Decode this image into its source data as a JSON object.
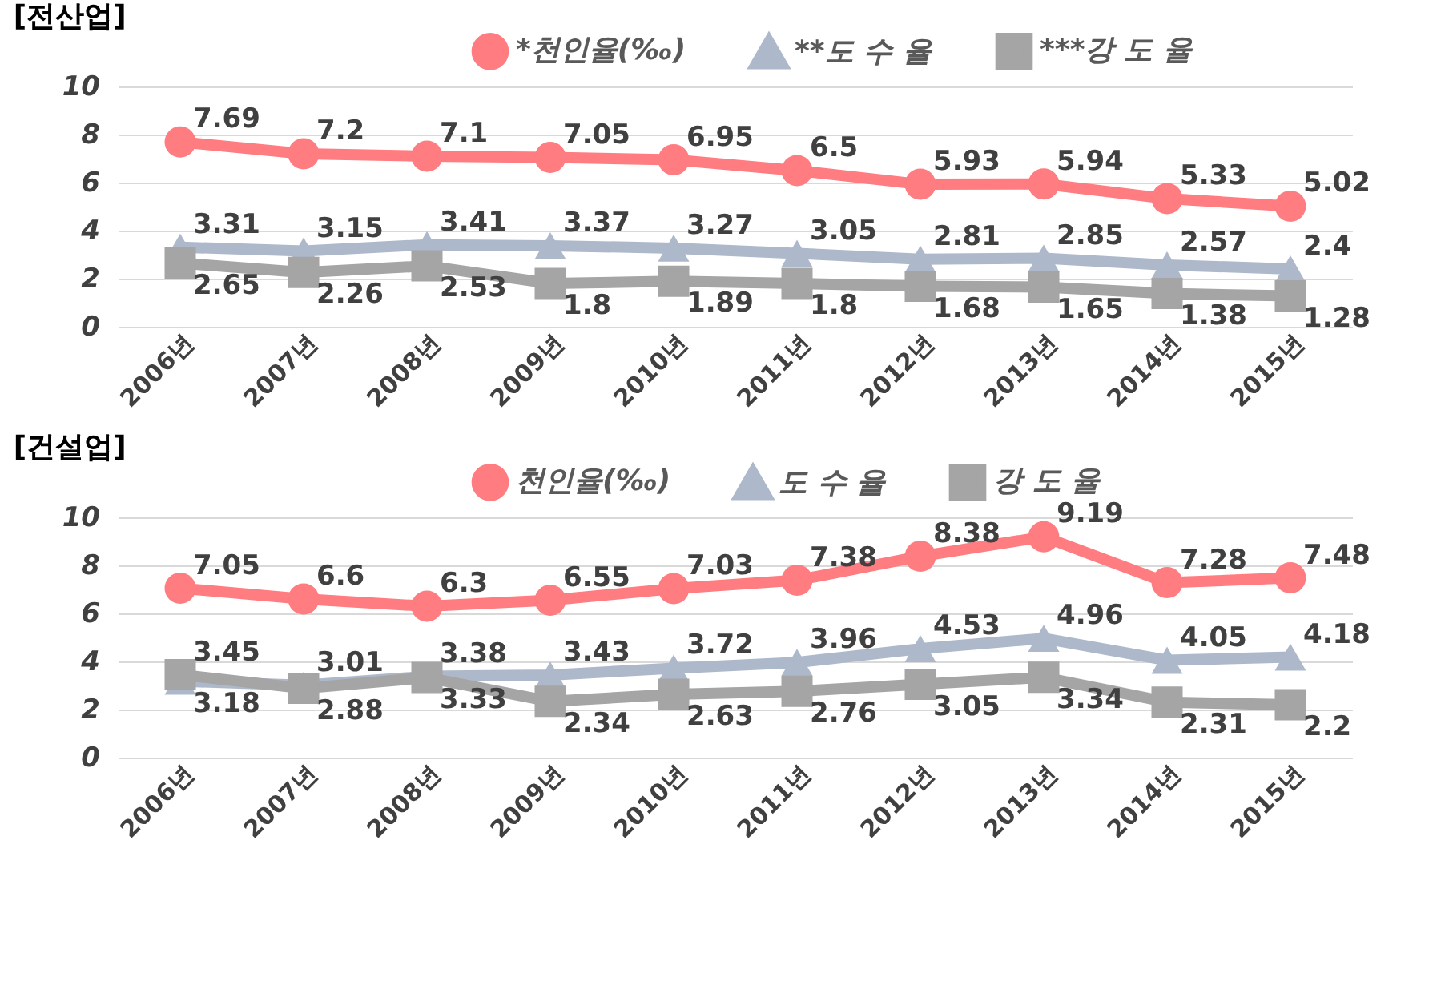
{
  "chart_data": [
    {
      "type": "line",
      "title": "[전산업]",
      "categories": [
        "2006년",
        "2007년",
        "2008년",
        "2009년",
        "2010년",
        "2011년",
        "2012년",
        "2013년",
        "2014년",
        "2015년"
      ],
      "series": [
        {
          "name": "*천인율(‰)",
          "color": "#ff7c80",
          "marker": "circle",
          "values": [
            7.69,
            7.2,
            7.1,
            7.05,
            6.95,
            6.5,
            5.93,
            5.94,
            5.33,
            5.02
          ]
        },
        {
          "name": "**도 수 율",
          "color": "#adb9ca",
          "marker": "triangle",
          "values": [
            3.31,
            3.15,
            3.41,
            3.37,
            3.27,
            3.05,
            2.81,
            2.85,
            2.57,
            2.4
          ]
        },
        {
          "name": "***강 도 율",
          "color": "#a5a5a5",
          "marker": "square",
          "values": [
            2.65,
            2.26,
            2.53,
            1.8,
            1.89,
            1.8,
            1.68,
            1.65,
            1.38,
            1.28
          ]
        }
      ],
      "ylim": [
        0,
        10
      ],
      "yticks": [
        0,
        2,
        4,
        6,
        8,
        10
      ],
      "grid": "y",
      "legend": "top",
      "data_labels": true
    },
    {
      "type": "line",
      "title": "[건설업]",
      "categories": [
        "2006년",
        "2007년",
        "2008년",
        "2009년",
        "2010년",
        "2011년",
        "2012년",
        "2013년",
        "2014년",
        "2015년"
      ],
      "series": [
        {
          "name": "천인율(‰)",
          "color": "#ff7c80",
          "marker": "circle",
          "values": [
            7.05,
            6.6,
            6.3,
            6.55,
            7.03,
            7.38,
            8.38,
            9.19,
            7.28,
            7.48
          ]
        },
        {
          "name": "도 수 율",
          "color": "#adb9ca",
          "marker": "triangle",
          "values": [
            3.18,
            3.01,
            3.38,
            3.43,
            3.72,
            3.96,
            4.53,
            4.96,
            4.05,
            4.18
          ]
        },
        {
          "name": "강 도 율",
          "color": "#a5a5a5",
          "marker": "square",
          "values": [
            3.45,
            2.88,
            3.33,
            2.34,
            2.63,
            2.76,
            3.05,
            3.34,
            2.31,
            2.2
          ]
        }
      ],
      "ylim": [
        0,
        10
      ],
      "yticks": [
        0,
        2,
        4,
        6,
        8,
        10
      ],
      "grid": "y",
      "legend": "top",
      "data_labels": true
    }
  ]
}
